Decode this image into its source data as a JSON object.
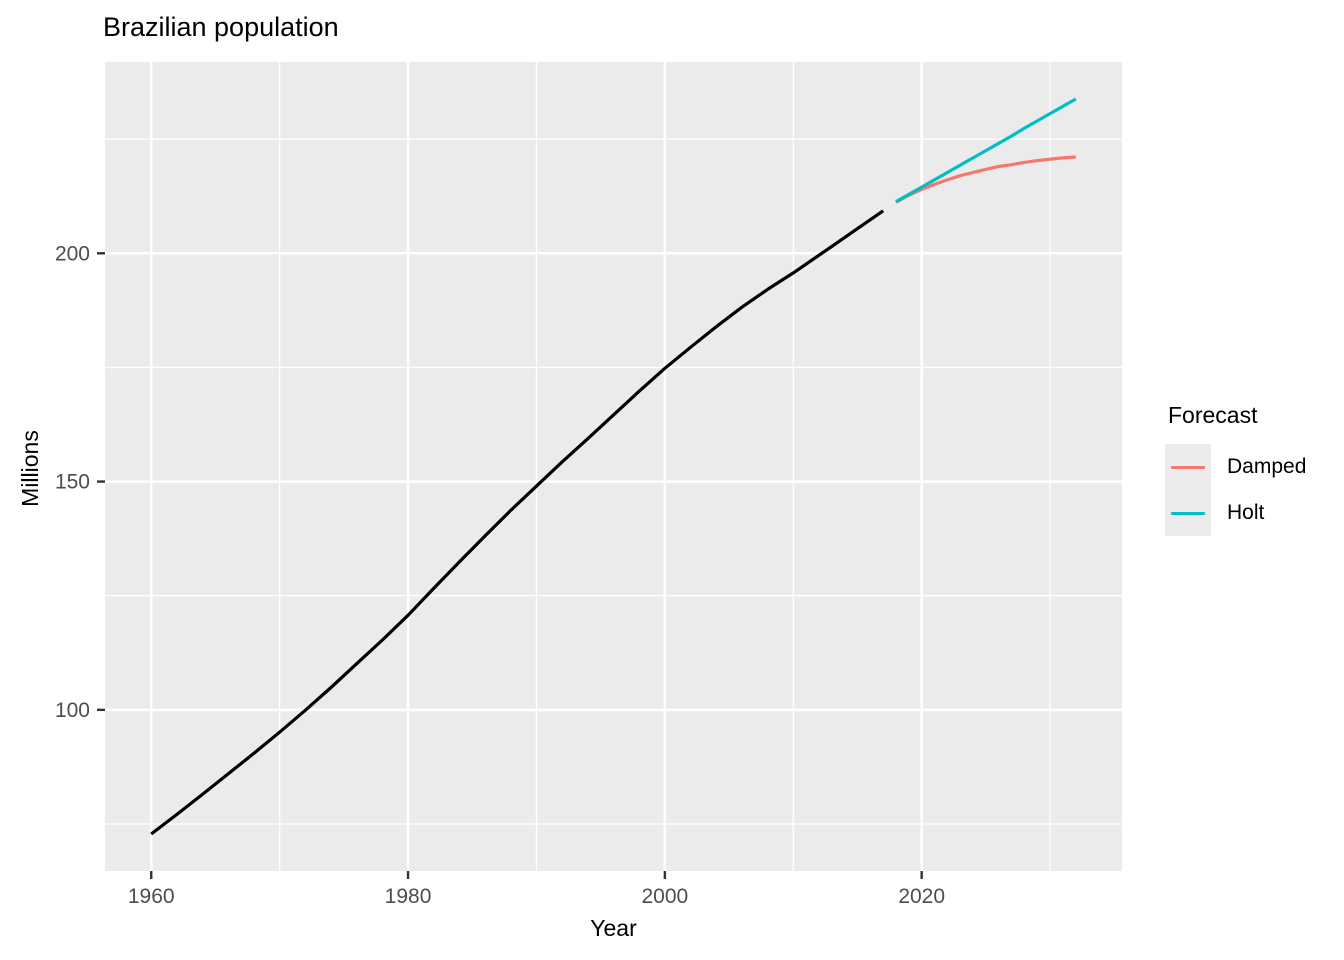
{
  "title": "Brazilian population",
  "colors": {
    "panel_bg": "#EBEBEB",
    "grid": "#FFFFFF",
    "tick_mark": "#333333",
    "tick_label": "#4D4D4D",
    "history": "#000000",
    "damped": "#F8766D",
    "holt": "#00BFC4"
  },
  "legend": {
    "title": "Forecast",
    "items": [
      {
        "label": "Damped",
        "color": "#F8766D"
      },
      {
        "label": "Holt",
        "color": "#00BFC4"
      }
    ]
  },
  "chart_data": {
    "type": "line",
    "title": "Brazilian population",
    "xlabel": "Year",
    "ylabel": "Millions",
    "x_ticks": [
      1960,
      1980,
      2000,
      2020
    ],
    "x_minor": [
      1970,
      1990,
      2010,
      2030
    ],
    "y_ticks": [
      100,
      150,
      200
    ],
    "y_minor": [
      75,
      125,
      175,
      225
    ],
    "xlim": [
      1956.4,
      2035.6
    ],
    "ylim": [
      64.7,
      241.9
    ],
    "grid": true,
    "legend_position": "right",
    "legend_title": "Forecast",
    "series": [
      {
        "name": "Historical data",
        "color": "#000000",
        "points": [
          [
            1960,
            72.8
          ],
          [
            1962,
            77.1
          ],
          [
            1964,
            81.5
          ],
          [
            1966,
            86.0
          ],
          [
            1968,
            90.5
          ],
          [
            1970,
            95.1
          ],
          [
            1972,
            99.9
          ],
          [
            1974,
            104.9
          ],
          [
            1976,
            110.1
          ],
          [
            1978,
            115.3
          ],
          [
            1980,
            120.7
          ],
          [
            1982,
            126.6
          ],
          [
            1984,
            132.4
          ],
          [
            1986,
            138.1
          ],
          [
            1988,
            143.7
          ],
          [
            1990,
            149.0
          ],
          [
            1992,
            154.3
          ],
          [
            1994,
            159.4
          ],
          [
            1996,
            164.6
          ],
          [
            1998,
            169.8
          ],
          [
            2000,
            174.8
          ],
          [
            2002,
            179.4
          ],
          [
            2004,
            183.9
          ],
          [
            2006,
            188.2
          ],
          [
            2008,
            192.1
          ],
          [
            2010,
            195.7
          ],
          [
            2013,
            201.5
          ],
          [
            2015,
            205.4
          ],
          [
            2017,
            209.3
          ]
        ]
      },
      {
        "name": "Damped",
        "color": "#F8766D",
        "points": [
          [
            2018,
            211.2
          ],
          [
            2019,
            212.7
          ],
          [
            2020,
            214.0
          ],
          [
            2021,
            215.1
          ],
          [
            2022,
            216.1
          ],
          [
            2023,
            217.0
          ],
          [
            2024,
            217.7
          ],
          [
            2025,
            218.4
          ],
          [
            2026,
            219.0
          ],
          [
            2027,
            219.4
          ],
          [
            2028,
            219.9
          ],
          [
            2029,
            220.3
          ],
          [
            2030,
            220.6
          ],
          [
            2031,
            220.9
          ],
          [
            2032,
            221.1
          ]
        ]
      },
      {
        "name": "Holt",
        "color": "#00BFC4",
        "points": [
          [
            2018,
            211.3
          ],
          [
            2019,
            212.9
          ],
          [
            2020,
            214.5
          ],
          [
            2021,
            216.1
          ],
          [
            2022,
            217.7
          ],
          [
            2023,
            219.3
          ],
          [
            2024,
            220.9
          ],
          [
            2025,
            222.5
          ],
          [
            2026,
            224.1
          ],
          [
            2027,
            225.7
          ],
          [
            2028,
            227.4
          ],
          [
            2029,
            229.0
          ],
          [
            2030,
            230.6
          ],
          [
            2031,
            232.2
          ],
          [
            2032,
            233.8
          ]
        ]
      }
    ]
  }
}
